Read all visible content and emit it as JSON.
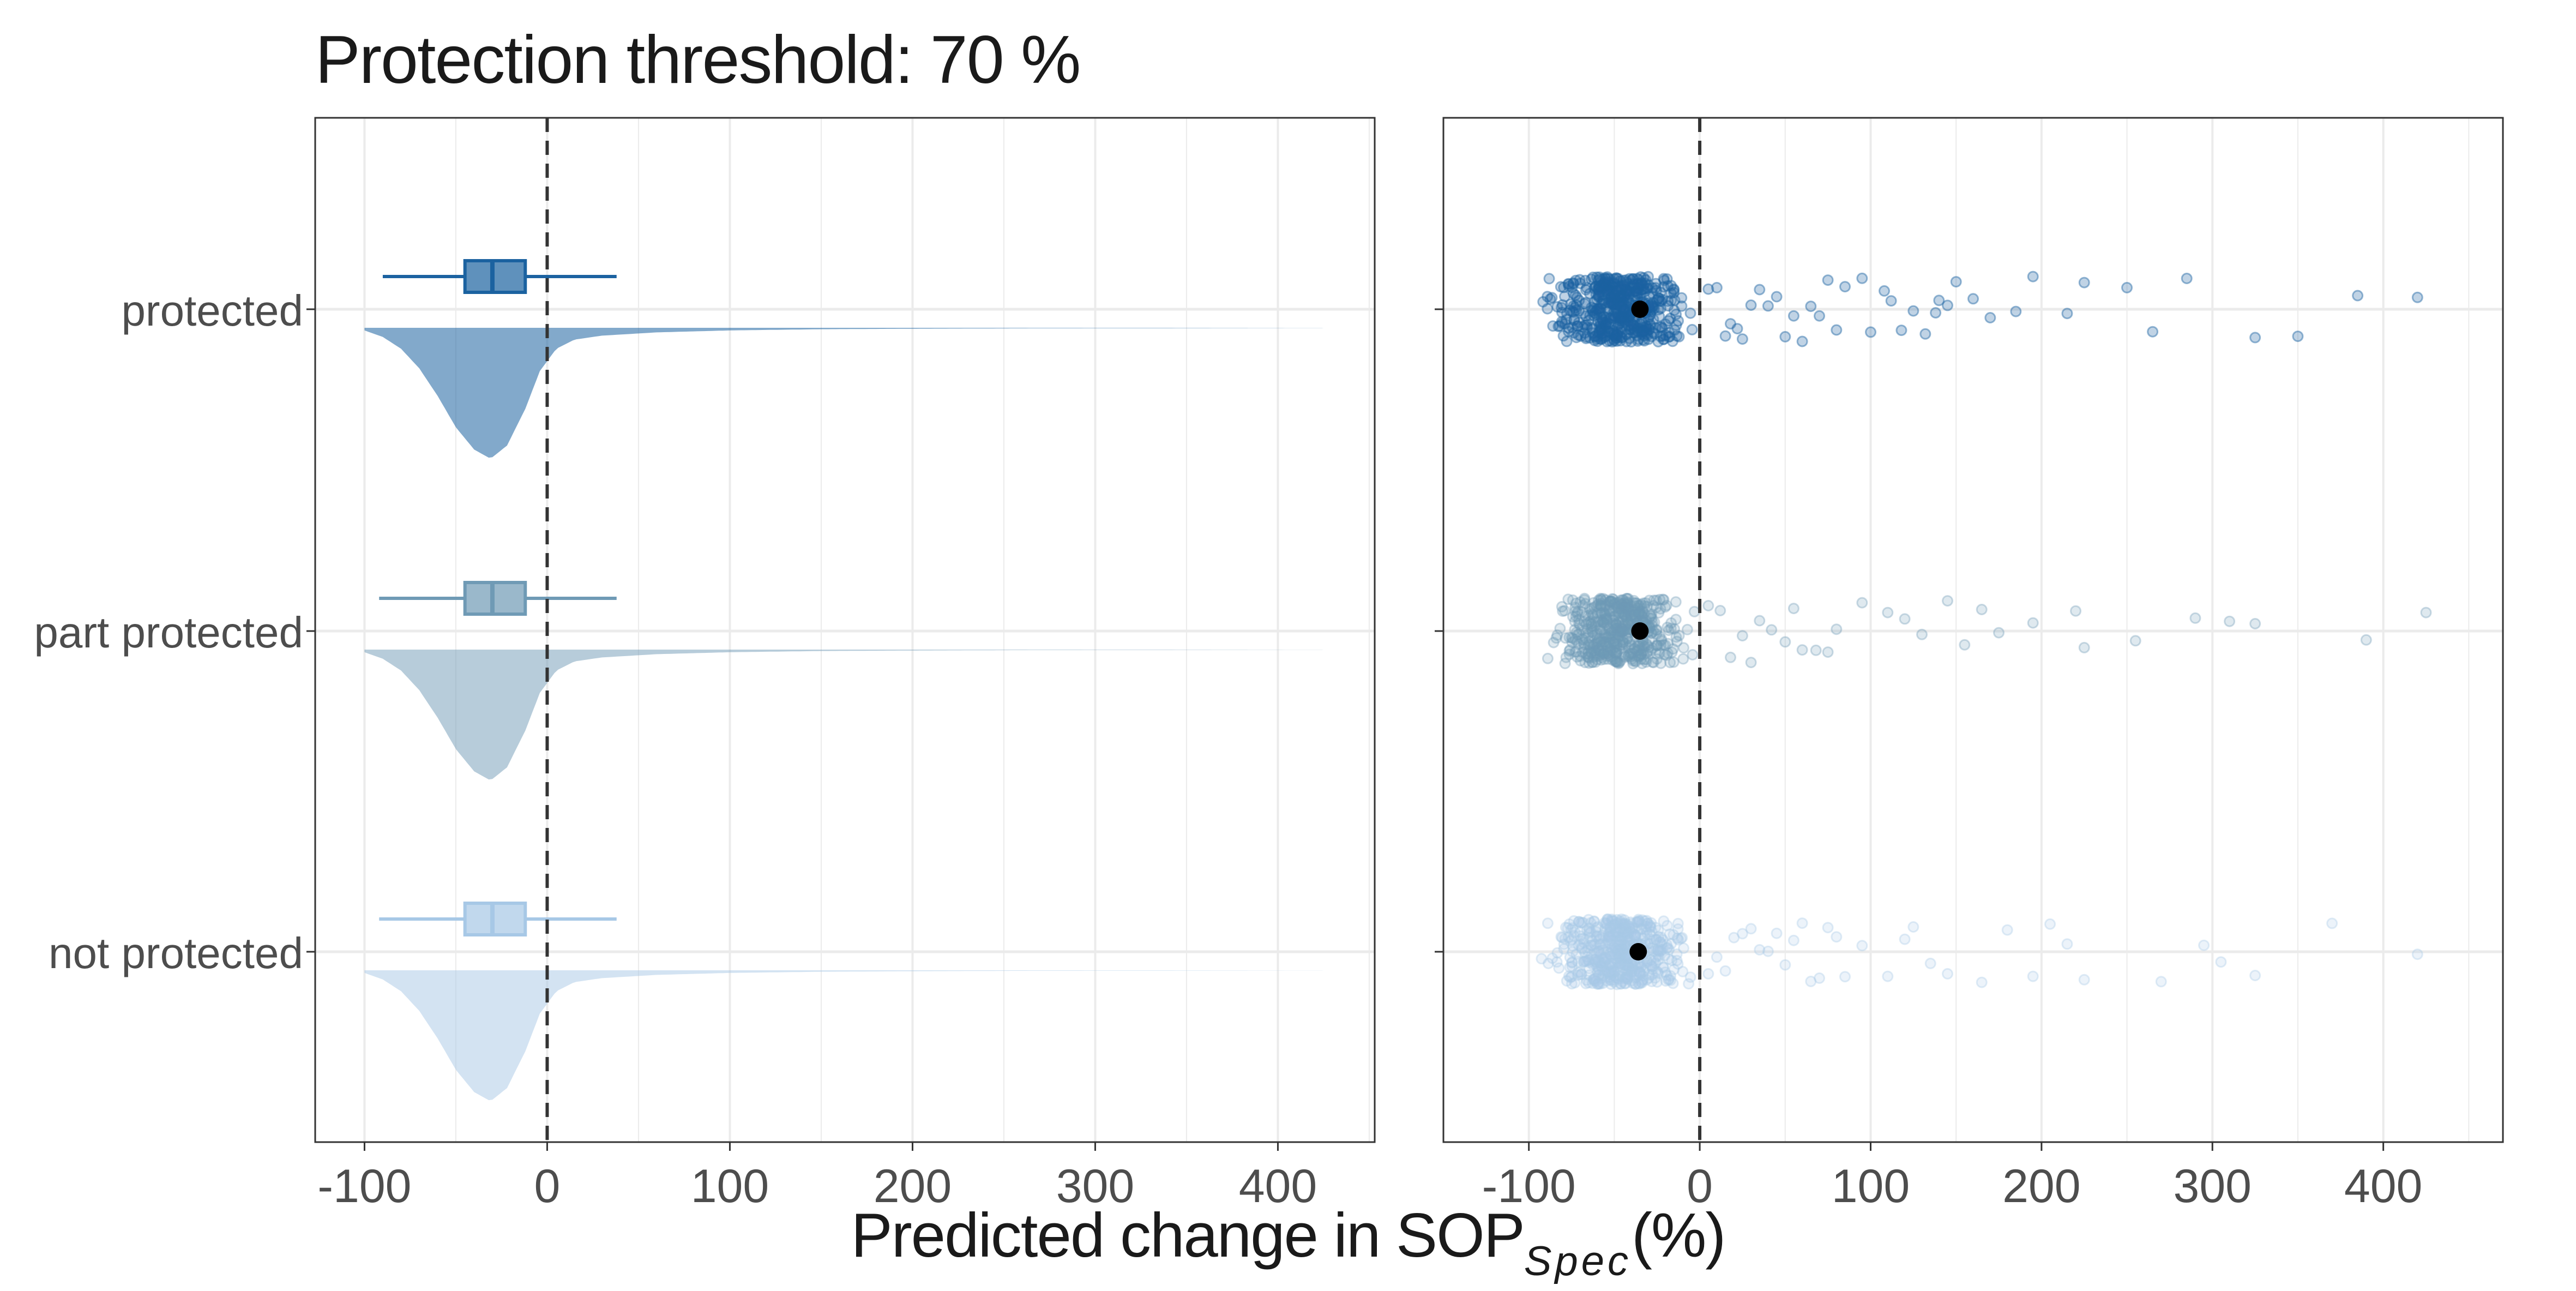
{
  "title": "Protection threshold: 70 %",
  "xlabel": {
    "main": "Predicted change in SOP",
    "subscript": "Spec",
    "suffix": "(%)"
  },
  "colors": {
    "protected": "#1b62a0",
    "part protected": "#6f9ab5",
    "not protected": "#a7c8e6",
    "mean_point": "#000000",
    "zero_line": "#333333",
    "grid": "#ebebeb",
    "panel_border": "#333333"
  },
  "chart_data": [
    {
      "type": "raincloud (half-violin + boxplot)",
      "panel": "left",
      "categories": [
        "protected",
        "part protected",
        "not protected"
      ],
      "x_ticks": [
        -100,
        0,
        100,
        200,
        300,
        400
      ],
      "xlim": [
        -127,
        453
      ],
      "reference_line_x": 0,
      "grid": true,
      "boxplots": [
        {
          "category": "protected",
          "whisker_low": -90,
          "q1": -45,
          "median": -30,
          "q3": -12,
          "whisker_high": 38
        },
        {
          "category": "part protected",
          "whisker_low": -92,
          "q1": -45,
          "median": -30,
          "q3": -12,
          "whisker_high": 38
        },
        {
          "category": "not protected",
          "whisker_low": -92,
          "q1": -45,
          "median": -30,
          "q3": -12,
          "whisker_high": 38
        }
      ],
      "density_mode_x": -31,
      "density_range": [
        -100,
        425
      ],
      "density_curve": [
        {
          "x": -100,
          "d": 0.02
        },
        {
          "x": -90,
          "d": 0.07
        },
        {
          "x": -80,
          "d": 0.16
        },
        {
          "x": -70,
          "d": 0.31
        },
        {
          "x": -60,
          "d": 0.52
        },
        {
          "x": -50,
          "d": 0.76
        },
        {
          "x": -40,
          "d": 0.93
        },
        {
          "x": -31,
          "d": 1.0
        },
        {
          "x": -22,
          "d": 0.9
        },
        {
          "x": -12,
          "d": 0.62
        },
        {
          "x": -4,
          "d": 0.33
        },
        {
          "x": 5,
          "d": 0.16
        },
        {
          "x": 15,
          "d": 0.09
        },
        {
          "x": 30,
          "d": 0.06
        },
        {
          "x": 60,
          "d": 0.035
        },
        {
          "x": 100,
          "d": 0.02
        },
        {
          "x": 150,
          "d": 0.011
        },
        {
          "x": 200,
          "d": 0.007
        },
        {
          "x": 260,
          "d": 0.004
        },
        {
          "x": 330,
          "d": 0.003
        },
        {
          "x": 425,
          "d": 0.001
        }
      ]
    },
    {
      "type": "scatter (jittered points + mean)",
      "panel": "right",
      "categories": [
        "protected",
        "part protected",
        "not protected"
      ],
      "x_ticks": [
        -100,
        0,
        100,
        200,
        300,
        400
      ],
      "xlim": [
        -150,
        470
      ],
      "reference_line_x": 0,
      "grid": true,
      "series": [
        {
          "category": "protected",
          "mean": -35,
          "dense_range": [
            -95,
            0
          ],
          "points": [
            5,
            10,
            15,
            18,
            22,
            25,
            30,
            35,
            40,
            45,
            50,
            55,
            60,
            65,
            70,
            75,
            80,
            85,
            95,
            100,
            108,
            112,
            118,
            125,
            132,
            138,
            140,
            145,
            150,
            160,
            170,
            185,
            195,
            215,
            225,
            250,
            265,
            285,
            325,
            350,
            385,
            420
          ]
        },
        {
          "category": "part protected",
          "mean": -35,
          "dense_range": [
            -95,
            0
          ],
          "points": [
            5,
            12,
            18,
            25,
            30,
            35,
            42,
            50,
            55,
            60,
            68,
            75,
            80,
            95,
            110,
            120,
            130,
            145,
            155,
            165,
            175,
            195,
            220,
            225,
            255,
            290,
            310,
            325,
            390,
            425
          ]
        },
        {
          "category": "not protected",
          "mean": -36,
          "dense_range": [
            -95,
            0
          ],
          "points": [
            5,
            10,
            15,
            20,
            25,
            30,
            35,
            40,
            45,
            50,
            55,
            60,
            65,
            70,
            75,
            80,
            85,
            95,
            110,
            120,
            125,
            135,
            145,
            165,
            180,
            195,
            205,
            215,
            225,
            270,
            295,
            305,
            325,
            370,
            420
          ]
        }
      ]
    }
  ]
}
